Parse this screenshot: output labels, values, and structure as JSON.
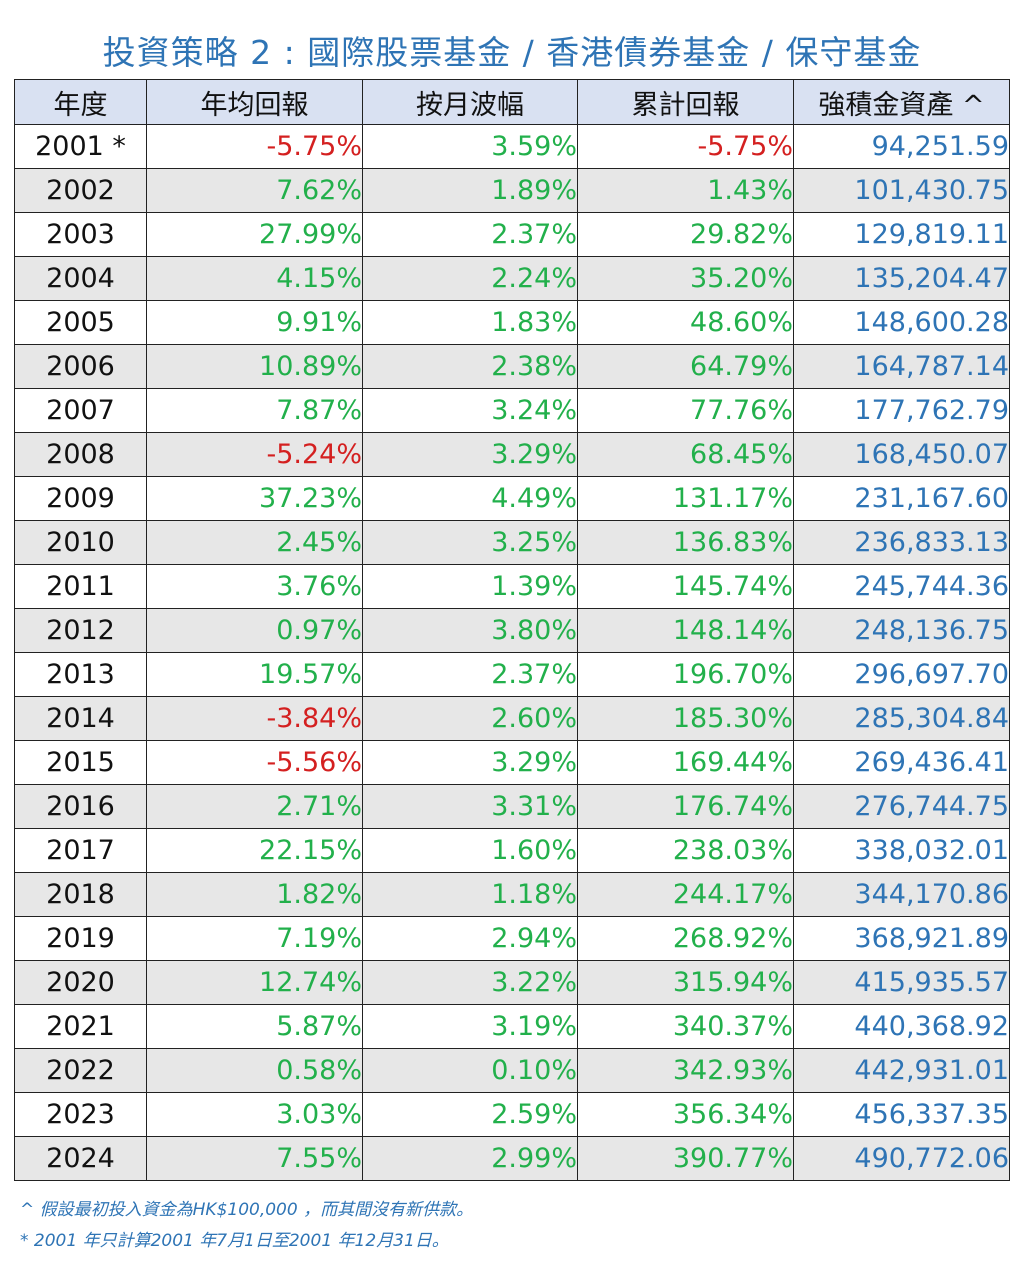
{
  "title": "投資策略 2 : 國際股票基金 / 香港債券基金  /  保守基金",
  "headers": [
    "年度",
    "年均回報",
    "按月波幅",
    "累計回報",
    "強積金資產 ^"
  ],
  "rows": [
    {
      "year": "2001 *",
      "annual": "-5.75%",
      "monthly": "3.59%",
      "cumulative": "-5.75%",
      "asset": "94,251.59"
    },
    {
      "year": "2002",
      "annual": "7.62%",
      "monthly": "1.89%",
      "cumulative": "1.43%",
      "asset": "101,430.75"
    },
    {
      "year": "2003",
      "annual": "27.99%",
      "monthly": "2.37%",
      "cumulative": "29.82%",
      "asset": "129,819.11"
    },
    {
      "year": "2004",
      "annual": "4.15%",
      "monthly": "2.24%",
      "cumulative": "35.20%",
      "asset": "135,204.47"
    },
    {
      "year": "2005",
      "annual": "9.91%",
      "monthly": "1.83%",
      "cumulative": "48.60%",
      "asset": "148,600.28"
    },
    {
      "year": "2006",
      "annual": "10.89%",
      "monthly": "2.38%",
      "cumulative": "64.79%",
      "asset": "164,787.14"
    },
    {
      "year": "2007",
      "annual": "7.87%",
      "monthly": "3.24%",
      "cumulative": "77.76%",
      "asset": "177,762.79"
    },
    {
      "year": "2008",
      "annual": "-5.24%",
      "monthly": "3.29%",
      "cumulative": "68.45%",
      "asset": "168,450.07"
    },
    {
      "year": "2009",
      "annual": "37.23%",
      "monthly": "4.49%",
      "cumulative": "131.17%",
      "asset": "231,167.60"
    },
    {
      "year": "2010",
      "annual": "2.45%",
      "monthly": "3.25%",
      "cumulative": "136.83%",
      "asset": "236,833.13"
    },
    {
      "year": "2011",
      "annual": "3.76%",
      "monthly": "1.39%",
      "cumulative": "145.74%",
      "asset": "245,744.36"
    },
    {
      "year": "2012",
      "annual": "0.97%",
      "monthly": "3.80%",
      "cumulative": "148.14%",
      "asset": "248,136.75"
    },
    {
      "year": "2013",
      "annual": "19.57%",
      "monthly": "2.37%",
      "cumulative": "196.70%",
      "asset": "296,697.70"
    },
    {
      "year": "2014",
      "annual": "-3.84%",
      "monthly": "2.60%",
      "cumulative": "185.30%",
      "asset": "285,304.84"
    },
    {
      "year": "2015",
      "annual": "-5.56%",
      "monthly": "3.29%",
      "cumulative": "169.44%",
      "asset": "269,436.41"
    },
    {
      "year": "2016",
      "annual": "2.71%",
      "monthly": "3.31%",
      "cumulative": "176.74%",
      "asset": "276,744.75"
    },
    {
      "year": "2017",
      "annual": "22.15%",
      "monthly": "1.60%",
      "cumulative": "238.03%",
      "asset": "338,032.01"
    },
    {
      "year": "2018",
      "annual": "1.82%",
      "monthly": "1.18%",
      "cumulative": "244.17%",
      "asset": "344,170.86"
    },
    {
      "year": "2019",
      "annual": "7.19%",
      "monthly": "2.94%",
      "cumulative": "268.92%",
      "asset": "368,921.89"
    },
    {
      "year": "2020",
      "annual": "12.74%",
      "monthly": "3.22%",
      "cumulative": "315.94%",
      "asset": "415,935.57"
    },
    {
      "year": "2021",
      "annual": "5.87%",
      "monthly": "3.19%",
      "cumulative": "340.37%",
      "asset": "440,368.92"
    },
    {
      "year": "2022",
      "annual": "0.58%",
      "monthly": "0.10%",
      "cumulative": "342.93%",
      "asset": "442,931.01"
    },
    {
      "year": "2023",
      "annual": "3.03%",
      "monthly": "2.59%",
      "cumulative": "356.34%",
      "asset": "456,337.35"
    },
    {
      "year": "2024",
      "annual": "7.55%",
      "monthly": "2.99%",
      "cumulative": "390.77%",
      "asset": "490,772.06"
    }
  ],
  "notes": [
    "^ 假設最初投入資金為HK$100,000 ，而其間沒有新供款。",
    "* 2001 年只計算2001 年7月1日至2001 年12月31日。"
  ],
  "colors": {
    "title": "#2e74b5",
    "header_bg": "#d9e1f2",
    "positive": "#22b04b",
    "negative": "#d42020",
    "asset": "#2e74b5",
    "stripe": "#e7e7e7"
  }
}
